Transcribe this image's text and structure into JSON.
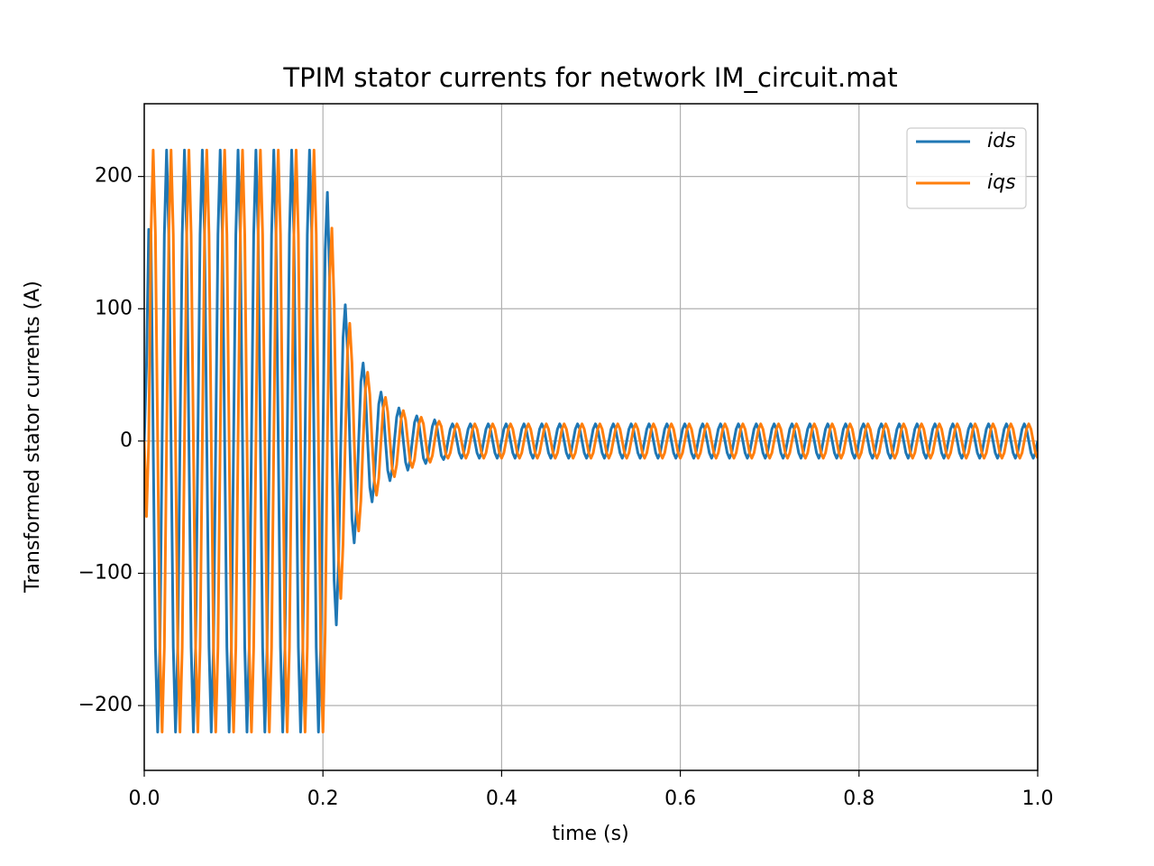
{
  "chart_data": {
    "type": "line",
    "title": "TPIM stator currents for network IM_circuit.mat",
    "x_label": "time (s)",
    "y_label": "Transformed stator currents (A)",
    "xlim": [
      0,
      1
    ],
    "ylim": [
      -249,
      255
    ],
    "xticks": [
      {
        "value": 0,
        "label": "0.0"
      },
      0.2,
      0.4,
      0.6,
      0.8,
      {
        "value": 1,
        "label": "1.0"
      }
    ],
    "yticks": [
      {
        "value": -200,
        "label": "−200"
      },
      {
        "value": -100,
        "label": "−100"
      },
      0,
      100,
      200
    ],
    "grid": true,
    "legend": "upper right",
    "x": [
      0,
      0.0025,
      0.005,
      0.0075,
      0.01,
      0.0125,
      0.015,
      0.0175,
      0.02,
      0.0225,
      0.025,
      0.0275,
      0.03,
      0.0325,
      0.035,
      0.0375,
      0.04,
      0.0425,
      0.045,
      0.0475,
      0.05,
      0.0525,
      0.055,
      0.0575,
      0.06,
      0.0625,
      0.065,
      0.0675,
      0.07,
      0.0725,
      0.075,
      0.0775,
      0.08,
      0.0825,
      0.085,
      0.0875,
      0.09,
      0.0925,
      0.095,
      0.0975,
      0.1,
      0.1025,
      0.105,
      0.1075,
      0.11,
      0.1125,
      0.115,
      0.1175,
      0.12,
      0.1225,
      0.125,
      0.1275,
      0.13,
      0.1325,
      0.135,
      0.1375,
      0.14,
      0.1425,
      0.145,
      0.1475,
      0.15,
      0.1525,
      0.155,
      0.1575,
      0.16,
      0.1625,
      0.165,
      0.1675,
      0.17,
      0.1725,
      0.175,
      0.1775,
      0.18,
      0.1825,
      0.185,
      0.1875,
      0.19,
      0.1925,
      0.195,
      0.1975,
      0.2,
      0.2025,
      0.205,
      0.2075,
      0.21,
      0.2125,
      0.215,
      0.2175,
      0.22,
      0.2225,
      0.225,
      0.2275,
      0.23,
      0.2325,
      0.235,
      0.2375,
      0.24,
      0.2425,
      0.245,
      0.2475,
      0.25,
      0.2525,
      0.255,
      0.2575,
      0.26,
      0.2625,
      0.265,
      0.2675,
      0.27,
      0.2725,
      0.275,
      0.2775,
      0.28,
      0.2825,
      0.285,
      0.2875,
      0.29,
      0.2925,
      0.295,
      0.2975,
      0.3,
      0.3025,
      0.305,
      0.3075,
      0.31,
      0.3125,
      0.315,
      0.3175,
      0.32,
      0.3225,
      0.325,
      0.3275,
      0.33,
      0.3325,
      0.335,
      0.3375,
      0.34,
      0.3425,
      0.345,
      0.3475,
      0.35,
      0.3525,
      0.355,
      0.3575,
      0.36,
      0.3625,
      0.365,
      0.3675,
      0.37,
      0.3725,
      0.375,
      0.3775,
      0.38,
      0.3825,
      0.385,
      0.3875,
      0.39,
      0.3925,
      0.395,
      0.3975,
      0.4,
      0.4025,
      0.405,
      0.4075,
      0.41,
      0.4125,
      0.415,
      0.4175,
      0.42,
      0.4225,
      0.425,
      0.4275,
      0.43,
      0.4325,
      0.435,
      0.4375,
      0.44,
      0.4425,
      0.445,
      0.4475,
      0.45,
      0.4525,
      0.455,
      0.4575,
      0.46,
      0.4625,
      0.465,
      0.4675,
      0.47,
      0.4725,
      0.475,
      0.4775,
      0.48,
      0.4825,
      0.485,
      0.4875,
      0.49,
      0.4925,
      0.495,
      0.4975,
      0.5,
      0.5025,
      0.505,
      0.5075,
      0.51,
      0.5125,
      0.515,
      0.5175,
      0.52,
      0.5225,
      0.525,
      0.5275,
      0.53,
      0.5325,
      0.535,
      0.5375,
      0.54,
      0.5425,
      0.545,
      0.5475,
      0.55,
      0.5525,
      0.555,
      0.5575,
      0.56,
      0.5625,
      0.565,
      0.5675,
      0.57,
      0.5725,
      0.575,
      0.5775,
      0.58,
      0.5825,
      0.585,
      0.5875,
      0.59,
      0.5925,
      0.595,
      0.5975,
      0.6,
      0.6025,
      0.605,
      0.6075,
      0.61,
      0.6125,
      0.615,
      0.6175,
      0.62,
      0.6225,
      0.625,
      0.6275,
      0.63,
      0.6325,
      0.635,
      0.6375,
      0.64,
      0.6425,
      0.645,
      0.6475,
      0.65,
      0.6525,
      0.655,
      0.6575,
      0.66,
      0.6625,
      0.665,
      0.6675,
      0.67,
      0.6725,
      0.675,
      0.6775,
      0.68,
      0.6825,
      0.685,
      0.6875,
      0.69,
      0.6925,
      0.695,
      0.6975,
      0.7,
      0.7025,
      0.705,
      0.7075,
      0.71,
      0.7125,
      0.715,
      0.7175,
      0.72,
      0.7225,
      0.725,
      0.7275,
      0.73,
      0.7325,
      0.735,
      0.7375,
      0.74,
      0.7425,
      0.745,
      0.7475,
      0.75,
      0.7525,
      0.755,
      0.7575,
      0.76,
      0.7625,
      0.765,
      0.7675,
      0.77,
      0.7725,
      0.775,
      0.7775,
      0.78,
      0.7825,
      0.785,
      0.7875,
      0.79,
      0.7925,
      0.795,
      0.7975,
      0.8,
      0.8025,
      0.805,
      0.8075,
      0.81,
      0.8125,
      0.815,
      0.8175,
      0.82,
      0.8225,
      0.825,
      0.8275,
      0.83,
      0.8325,
      0.835,
      0.8375,
      0.84,
      0.8425,
      0.845,
      0.8475,
      0.85,
      0.8525,
      0.855,
      0.8575,
      0.86,
      0.8625,
      0.865,
      0.8675,
      0.87,
      0.8725,
      0.875,
      0.8775,
      0.88,
      0.8825,
      0.885,
      0.8875,
      0.89,
      0.8925,
      0.895,
      0.8975,
      0.9,
      0.9025,
      0.905,
      0.9075,
      0.91,
      0.9125,
      0.915,
      0.9175,
      0.92,
      0.9225,
      0.925,
      0.9275,
      0.93,
      0.9325,
      0.935,
      0.9375,
      0.94,
      0.9425,
      0.945,
      0.9475,
      0.95,
      0.9525,
      0.955,
      0.9575,
      0.96,
      0.9625,
      0.965,
      0.9675,
      0.97,
      0.9725,
      0.975,
      0.9775,
      0.98,
      0.9825,
      0.985,
      0.9875,
      0.99,
      0.9925,
      0.995,
      0.9975,
      1
    ],
    "series": [
      {
        "name": "ids",
        "color": "#1f77b4",
        "values": [
          0,
          57,
          160,
          156,
          0,
          -156,
          -220,
          -156,
          0,
          156,
          220,
          156,
          0,
          -156,
          -220,
          -156,
          0,
          156,
          220,
          156,
          0,
          -156,
          -220,
          -156,
          0,
          156,
          220,
          156,
          0,
          -156,
          -220,
          -156,
          0,
          156,
          220,
          156,
          0,
          -156,
          -220,
          -156,
          0,
          156,
          220,
          156,
          0,
          -156,
          -220,
          -156,
          0,
          156,
          220,
          156,
          0,
          -156,
          -220,
          -156,
          0,
          156,
          220,
          156,
          0,
          -156,
          -220,
          -156,
          0,
          156,
          220,
          156,
          0,
          -156,
          -220,
          -156,
          0,
          156,
          220,
          156,
          0,
          -156,
          -220,
          -156,
          0,
          144,
          188,
          123,
          0,
          -105,
          -139,
          -90,
          0,
          78,
          103,
          68,
          0,
          -59,
          -77,
          -51,
          0,
          45,
          59,
          39,
          0,
          -35,
          -46,
          -30,
          0,
          28,
          37,
          25,
          0,
          -22,
          -30,
          -21,
          0,
          18,
          25,
          17,
          0,
          -16,
          -22,
          -15,
          0,
          14,
          19,
          13,
          0,
          -13,
          -17,
          -12,
          0,
          11,
          16,
          11,
          0,
          -11,
          -14,
          -10,
          0,
          9,
          13,
          9,
          0,
          -9,
          -13,
          -9,
          0,
          9,
          13,
          9,
          0,
          -9,
          -13,
          -9,
          0,
          9,
          13,
          9,
          0,
          -9,
          -13,
          -9,
          0,
          9,
          13,
          9,
          0,
          -9,
          -13,
          -9,
          0,
          9,
          13,
          9,
          0,
          -9,
          -13,
          -9,
          0,
          9,
          13,
          9,
          0,
          -9,
          -13,
          -9,
          0,
          9,
          13,
          9,
          0,
          -9,
          -13,
          -9,
          0,
          9,
          13,
          9,
          0,
          -9,
          -13,
          -9,
          0,
          9,
          13,
          9,
          0,
          -9,
          -13,
          -9,
          0,
          9,
          13,
          9,
          0,
          -9,
          -13,
          -9,
          0,
          9,
          13,
          9,
          0,
          -9,
          -13,
          -9,
          0,
          9,
          13,
          9,
          0,
          -9,
          -13,
          -9,
          0,
          9,
          13,
          9,
          0,
          -9,
          -13,
          -9,
          0,
          9,
          13,
          9,
          0,
          -9,
          -13,
          -9,
          0,
          9,
          13,
          9,
          0,
          -9,
          -13,
          -9,
          0,
          9,
          13,
          9,
          0,
          -9,
          -13,
          -9,
          0,
          9,
          13,
          9,
          0,
          -9,
          -13,
          -9,
          0,
          9,
          13,
          9,
          0,
          -9,
          -13,
          -9,
          0,
          9,
          13,
          9,
          0,
          -9,
          -13,
          -9,
          0,
          9,
          13,
          9,
          0,
          -9,
          -13,
          -9,
          0,
          9,
          13,
          9,
          0,
          -9,
          -13,
          -9,
          0,
          9,
          13,
          9,
          0,
          -9,
          -13,
          -9,
          0,
          9,
          13,
          9,
          0,
          -9,
          -13,
          -9,
          0,
          9,
          13,
          9,
          0,
          -9,
          -13,
          -9,
          0,
          9,
          13,
          9,
          0,
          -9,
          -13,
          -9,
          0,
          9,
          13,
          9,
          0,
          -9,
          -13,
          -9,
          0,
          9,
          13,
          9,
          0,
          -9,
          -13,
          -9,
          0,
          9,
          13,
          9,
          0,
          -9,
          -13,
          -9,
          0,
          9,
          13,
          9,
          0,
          -9,
          -13,
          -9,
          0,
          9,
          13,
          9,
          0,
          -9,
          -13,
          -9,
          0,
          9,
          13,
          9,
          0,
          -9,
          -13,
          -9,
          0,
          9,
          13,
          9,
          0,
          -9,
          -13,
          -9,
          0,
          9,
          13,
          9,
          0,
          -9,
          -13,
          -9,
          0
        ]
      },
      {
        "name": "iqs",
        "color": "#ff7f0e",
        "values": [
          0,
          -57,
          0,
          156,
          220,
          156,
          0,
          -156,
          -220,
          -156,
          0,
          156,
          220,
          156,
          0,
          -156,
          -220,
          -156,
          0,
          156,
          220,
          156,
          0,
          -156,
          -220,
          -156,
          0,
          156,
          220,
          156,
          0,
          -156,
          -220,
          -156,
          0,
          156,
          220,
          156,
          0,
          -156,
          -220,
          -156,
          0,
          156,
          220,
          156,
          0,
          -156,
          -220,
          -156,
          0,
          156,
          220,
          156,
          0,
          -156,
          -220,
          -156,
          0,
          156,
          220,
          156,
          0,
          -156,
          -220,
          -156,
          0,
          156,
          220,
          156,
          0,
          -156,
          -220,
          -156,
          0,
          156,
          220,
          156,
          0,
          -156,
          -220,
          -144,
          0,
          123,
          161,
          105,
          0,
          -90,
          -119,
          -78,
          0,
          68,
          89,
          59,
          0,
          -51,
          -68,
          -45,
          0,
          39,
          52,
          35,
          0,
          -30,
          -41,
          -28,
          0,
          25,
          33,
          22,
          0,
          -21,
          -27,
          -18,
          0,
          17,
          23,
          16,
          0,
          -15,
          -20,
          -14,
          0,
          13,
          18,
          13,
          0,
          -12,
          -16,
          -11,
          0,
          11,
          15,
          11,
          0,
          -10,
          -13,
          -9,
          0,
          9,
          13,
          9,
          0,
          -9,
          -13,
          -9,
          0,
          9,
          13,
          9,
          0,
          -9,
          -13,
          -9,
          0,
          9,
          13,
          9,
          0,
          -9,
          -13,
          -9,
          0,
          9,
          13,
          9,
          0,
          -9,
          -13,
          -9,
          0,
          9,
          13,
          9,
          0,
          -9,
          -13,
          -9,
          0,
          9,
          13,
          9,
          0,
          -9,
          -13,
          -9,
          0,
          9,
          13,
          9,
          0,
          -9,
          -13,
          -9,
          0,
          9,
          13,
          9,
          0,
          -9,
          -13,
          -9,
          0,
          9,
          13,
          9,
          0,
          -9,
          -13,
          -9,
          0,
          9,
          13,
          9,
          0,
          -9,
          -13,
          -9,
          0,
          9,
          13,
          9,
          0,
          -9,
          -13,
          -9,
          0,
          9,
          13,
          9,
          0,
          -9,
          -13,
          -9,
          0,
          9,
          13,
          9,
          0,
          -9,
          -13,
          -9,
          0,
          9,
          13,
          9,
          0,
          -9,
          -13,
          -9,
          0,
          9,
          13,
          9,
          0,
          -9,
          -13,
          -9,
          0,
          9,
          13,
          9,
          0,
          -9,
          -13,
          -9,
          0,
          9,
          13,
          9,
          0,
          -9,
          -13,
          -9,
          0,
          9,
          13,
          9,
          0,
          -9,
          -13,
          -9,
          0,
          9,
          13,
          9,
          0,
          -9,
          -13,
          -9,
          0,
          9,
          13,
          9,
          0,
          -9,
          -13,
          -9,
          0,
          9,
          13,
          9,
          0,
          -9,
          -13,
          -9,
          0,
          9,
          13,
          9,
          0,
          -9,
          -13,
          -9,
          0,
          9,
          13,
          9,
          0,
          -9,
          -13,
          -9,
          0,
          9,
          13,
          9,
          0,
          -9,
          -13,
          -9,
          0,
          9,
          13,
          9,
          0,
          -9,
          -13,
          -9,
          0,
          9,
          13,
          9,
          0,
          -9,
          -13,
          -9,
          0,
          9,
          13,
          9,
          0,
          -9,
          -13,
          -9,
          0,
          9,
          13,
          9,
          0,
          -9,
          -13,
          -9,
          0,
          9,
          13,
          9,
          0,
          -9,
          -13,
          -9,
          0,
          9,
          13,
          9,
          0,
          -9,
          -13,
          -9,
          0,
          9,
          13,
          9,
          0,
          -9,
          -13,
          -9,
          0,
          9,
          13,
          9,
          0,
          -9,
          -13,
          -9,
          0,
          9,
          13,
          9,
          0,
          -9,
          -13
        ]
      }
    ]
  }
}
